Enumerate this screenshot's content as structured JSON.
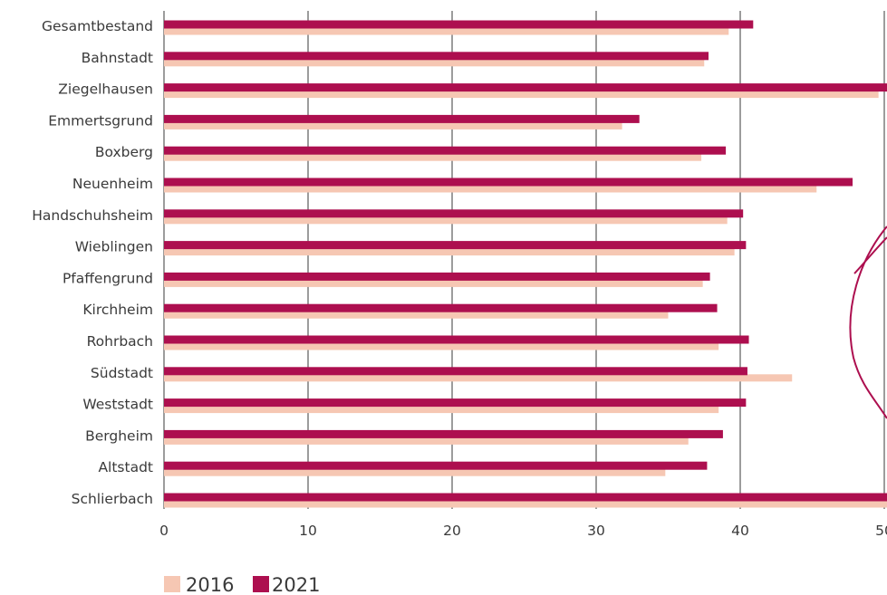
{
  "chart_data": {
    "type": "bar",
    "orientation": "horizontal",
    "categories": [
      "Gesamtbestand",
      "Bahnstadt",
      "Ziegelhausen",
      "Emmertsgrund",
      "Boxberg",
      "Neuenheim",
      "Handschuhsheim",
      "Wieblingen",
      "Pfaffengrund",
      "Kirchheim",
      "Rohrbach",
      "Südstadt",
      "Weststadt",
      "Bergheim",
      "Altstadt",
      "Schlierbach"
    ],
    "series": [
      {
        "name": "2016",
        "color": "#f6c7b3",
        "values": [
          39.2,
          37.5,
          49.6,
          31.8,
          37.3,
          45.3,
          39.1,
          39.6,
          37.4,
          35.0,
          38.5,
          43.6,
          38.5,
          36.4,
          34.8,
          51.0
        ]
      },
      {
        "name": "2021",
        "color": "#ad0f4f",
        "values": [
          40.9,
          37.8,
          51.0,
          33.0,
          39.0,
          47.8,
          40.2,
          40.4,
          37.9,
          38.4,
          40.6,
          40.5,
          40.4,
          38.8,
          37.7,
          51.5
        ]
      }
    ],
    "xlim": [
      0,
      50
    ],
    "xticks": [
      "0",
      "10",
      "20",
      "30",
      "40",
      "50"
    ],
    "grid": true,
    "legend_position": "bottom-left"
  }
}
